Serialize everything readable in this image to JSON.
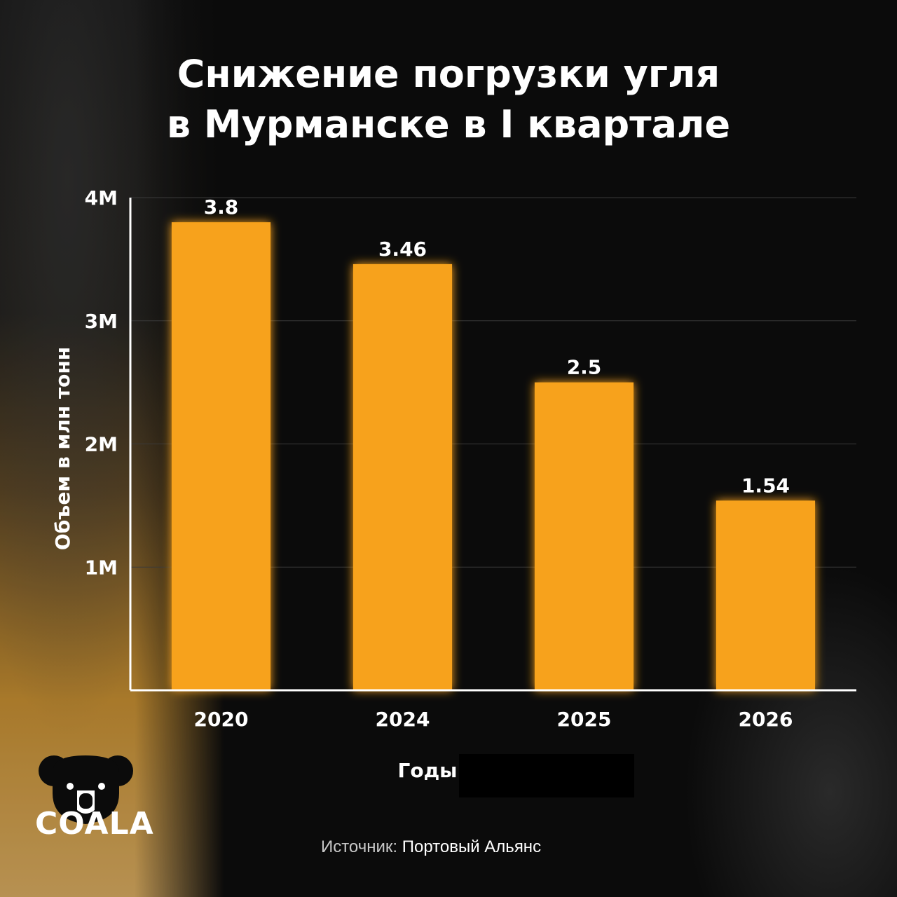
{
  "header": {
    "title_line1": "Снижение погрузки угля",
    "title_line2": "в Мурманске в I квартале"
  },
  "chart_data": {
    "type": "bar",
    "title": "Снижение погрузки угля в Мурманске в I квартале",
    "categories": [
      "2020",
      "2024",
      "2025",
      "2026"
    ],
    "values": [
      3.8,
      3.46,
      2.5,
      1.54
    ],
    "value_labels": [
      "3.8",
      "3.46",
      "2.5",
      "1.54"
    ],
    "ylabel": "Объем в млн тонн",
    "xlabel": "Годы",
    "ylim": [
      0,
      4
    ],
    "yticks": [
      1,
      2,
      3,
      4
    ],
    "ytick_labels": [
      "1M",
      "2M",
      "3M",
      "4M"
    ],
    "grid": true,
    "bar_color": "#f7a21b"
  },
  "footer": {
    "source_label": "Источник:",
    "source_value": "Портовый Альянс"
  },
  "brand": {
    "logo_icon": "koala-icon",
    "logo_text": "COALA"
  }
}
